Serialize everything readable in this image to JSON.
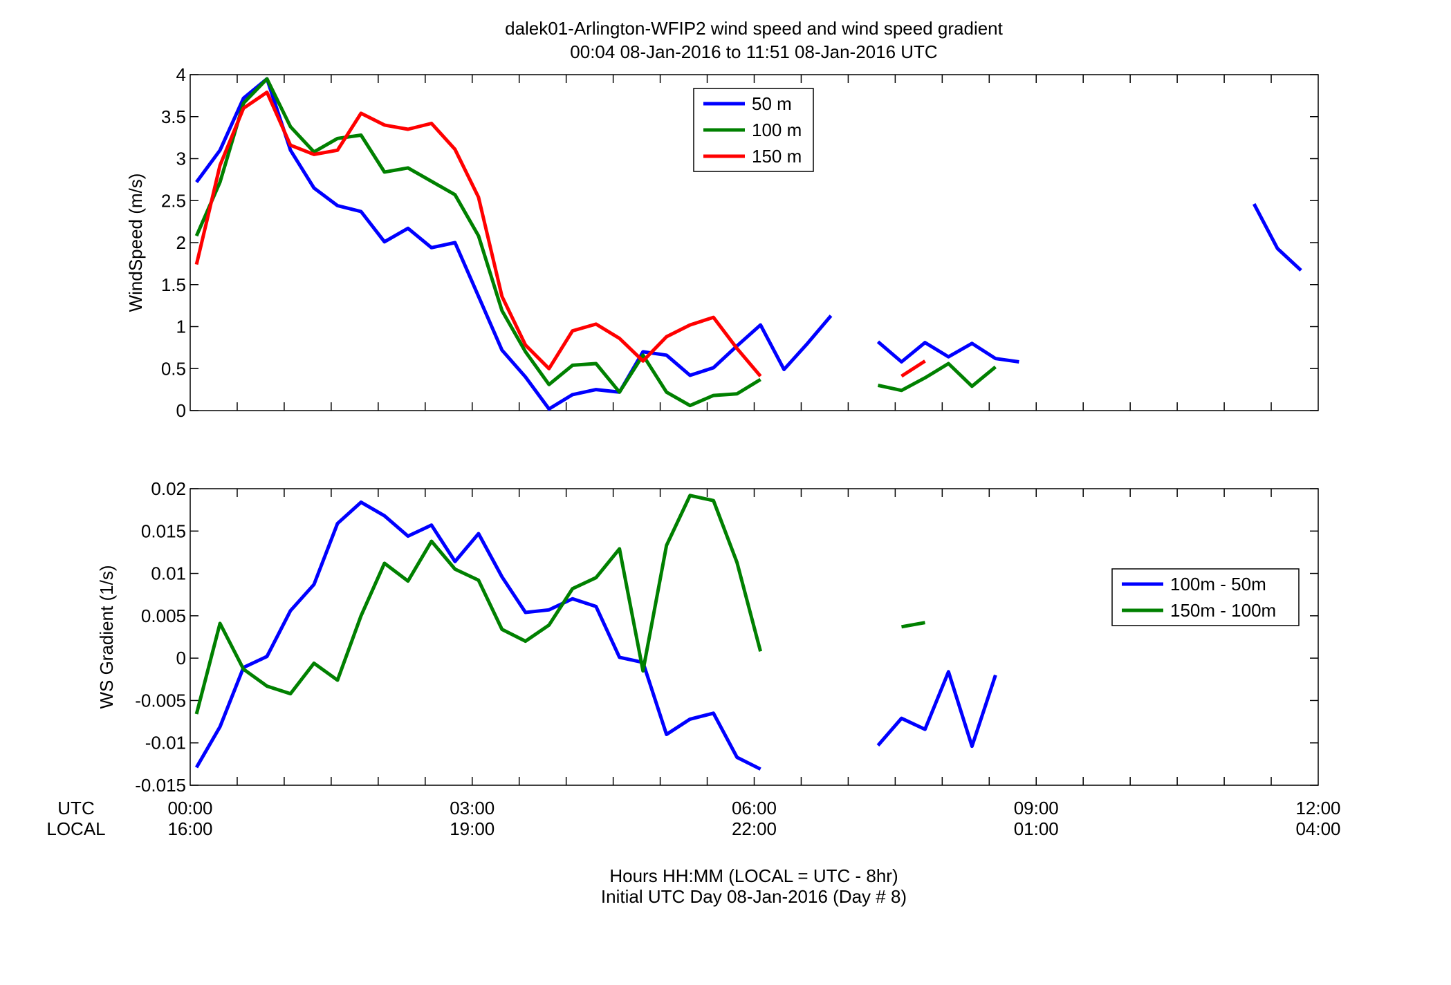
{
  "figure": {
    "title_line1": "dalek01-Arlington-WFIP2  wind speed and wind speed gradient",
    "title_line2": "00:04 08-Jan-2016 to 11:51 08-Jan-2016  UTC",
    "xlabel_line1": "Hours HH:MM  (LOCAL = UTC - 8hr)",
    "xlabel_line2": "Initial UTC Day 08-Jan-2016 (Day # 8)",
    "row_label_utc": "UTC",
    "row_label_local": "LOCAL",
    "x_ticks_utc": [
      "00:00",
      "03:00",
      "06:00",
      "09:00",
      "12:00"
    ],
    "x_ticks_local": [
      "16:00",
      "19:00",
      "22:00",
      "01:00",
      "04:00"
    ]
  },
  "chart_data": [
    {
      "type": "line",
      "ylabel": "WindSpeed (m/s)",
      "xlabel": "Hours HH:MM  (LOCAL = UTC - 8hr)",
      "xlim": [
        0,
        12
      ],
      "ylim": [
        0,
        4
      ],
      "x_tick_values": [
        0,
        3,
        6,
        9,
        12
      ],
      "y_ticks": [
        0,
        0.5,
        1,
        1.5,
        2,
        2.5,
        3,
        3.5,
        4
      ],
      "y_tick_labels": [
        "0",
        "0.5",
        "1",
        "1.5",
        "2",
        "2.5",
        "3",
        "3.5",
        "4"
      ],
      "grid": false,
      "legend_position": "top-center",
      "series": [
        {
          "name": "50 m",
          "color": "#0000ff",
          "x": [
            0.067,
            0.317,
            0.567,
            0.817,
            1.067,
            1.317,
            1.567,
            1.817,
            2.067,
            2.317,
            2.567,
            2.817,
            3.067,
            3.317,
            3.567,
            3.817,
            4.067,
            4.317,
            4.567,
            4.817,
            5.067,
            5.317,
            5.567,
            5.817,
            6.067,
            6.317,
            6.567,
            6.817,
            7.067,
            7.317,
            7.567,
            7.817,
            8.067,
            8.317,
            8.567,
            8.817,
            9.067,
            9.317,
            9.567,
            9.817,
            10.067,
            10.317,
            10.567,
            10.817,
            11.067,
            11.317,
            11.567,
            11.817
          ],
          "y": [
            2.72,
            3.1,
            3.72,
            3.95,
            3.1,
            2.65,
            2.44,
            2.37,
            2.01,
            2.17,
            1.94,
            2.0,
            1.36,
            0.72,
            0.4,
            0.02,
            0.19,
            0.25,
            0.22,
            0.7,
            0.66,
            0.42,
            0.51,
            0.77,
            1.02,
            0.49,
            0.8,
            1.13,
            null,
            0.82,
            0.58,
            0.81,
            0.64,
            0.8,
            0.62,
            0.58,
            null,
            null,
            null,
            null,
            null,
            null,
            null,
            null,
            null,
            2.46,
            1.93,
            1.67
          ]
        },
        {
          "name": "100 m",
          "color": "#008000",
          "x": [
            0.067,
            0.317,
            0.567,
            0.817,
            1.067,
            1.317,
            1.567,
            1.817,
            2.067,
            2.317,
            2.567,
            2.817,
            3.067,
            3.317,
            3.567,
            3.817,
            4.067,
            4.317,
            4.567,
            4.817,
            5.067,
            5.317,
            5.567,
            5.817,
            6.067,
            6.317,
            6.567,
            6.817,
            7.067,
            7.317,
            7.567,
            7.817,
            8.067,
            8.317,
            8.567
          ],
          "y": [
            2.08,
            2.72,
            3.66,
            3.95,
            3.38,
            3.08,
            3.24,
            3.28,
            2.84,
            2.89,
            2.73,
            2.57,
            2.08,
            1.19,
            0.7,
            0.31,
            0.54,
            0.56,
            0.22,
            0.66,
            0.22,
            0.06,
            0.18,
            0.2,
            0.37,
            null,
            null,
            null,
            null,
            0.3,
            0.24,
            0.39,
            0.56,
            0.29,
            0.52
          ]
        },
        {
          "name": "150 m",
          "color": "#ff0000",
          "x": [
            0.067,
            0.317,
            0.567,
            0.817,
            1.067,
            1.317,
            1.567,
            1.817,
            2.067,
            2.317,
            2.567,
            2.817,
            3.067,
            3.317,
            3.567,
            3.817,
            4.067,
            4.317,
            4.567,
            4.817,
            5.067,
            5.317,
            5.567,
            5.817,
            6.067,
            6.317,
            6.567,
            6.817,
            7.067,
            7.317,
            7.567,
            7.817
          ],
          "y": [
            1.74,
            2.92,
            3.6,
            3.79,
            3.16,
            3.05,
            3.1,
            3.54,
            3.4,
            3.35,
            3.42,
            3.11,
            2.54,
            1.36,
            0.78,
            0.5,
            0.95,
            1.03,
            0.86,
            0.59,
            0.88,
            1.02,
            1.11,
            0.74,
            0.41,
            null,
            null,
            null,
            null,
            null,
            0.41,
            0.59
          ]
        }
      ]
    },
    {
      "type": "line",
      "ylabel": "WS Gradient (1/s)",
      "xlabel": "Hours HH:MM  (LOCAL = UTC - 8hr)",
      "xlim": [
        0,
        12
      ],
      "ylim": [
        -0.015,
        0.02
      ],
      "x_tick_values": [
        0,
        3,
        6,
        9,
        12
      ],
      "y_ticks": [
        -0.015,
        -0.01,
        -0.005,
        0,
        0.005,
        0.01,
        0.015,
        0.02
      ],
      "y_tick_labels": [
        "-0.015",
        "-0.01",
        "-0.005",
        "0",
        "0.005",
        "0.01",
        "0.015",
        "0.02"
      ],
      "grid": false,
      "legend_position": "right",
      "series": [
        {
          "name": "100m - 50m",
          "color": "#0000ff",
          "x": [
            0.067,
            0.317,
            0.567,
            0.817,
            1.067,
            1.317,
            1.567,
            1.817,
            2.067,
            2.317,
            2.567,
            2.817,
            3.067,
            3.317,
            3.567,
            3.817,
            4.067,
            4.317,
            4.567,
            4.817,
            5.067,
            5.317,
            5.567,
            5.817,
            6.067,
            6.317,
            6.567,
            6.817,
            7.067,
            7.317,
            7.567,
            7.817,
            8.067,
            8.317,
            8.567
          ],
          "y": [
            -0.0129,
            -0.0081,
            -0.0011,
            0.0002,
            0.0056,
            0.0087,
            0.0159,
            0.0184,
            0.0168,
            0.0144,
            0.0157,
            0.0114,
            0.0147,
            0.0096,
            0.0054,
            0.0057,
            0.007,
            0.0061,
            0.0001,
            -0.0005,
            -0.009,
            -0.0072,
            -0.0065,
            -0.0117,
            -0.0131,
            null,
            null,
            null,
            null,
            -0.0103,
            -0.0071,
            -0.0084,
            -0.0016,
            -0.0104,
            -0.002
          ]
        },
        {
          "name": "150m - 100m",
          "color": "#008000",
          "x": [
            0.067,
            0.317,
            0.567,
            0.817,
            1.067,
            1.317,
            1.567,
            1.817,
            2.067,
            2.317,
            2.567,
            2.817,
            3.067,
            3.317,
            3.567,
            3.817,
            4.067,
            4.317,
            4.567,
            4.817,
            5.067,
            5.317,
            5.567,
            5.817,
            6.067,
            6.317,
            6.567,
            6.817,
            7.067,
            7.317,
            7.567,
            7.817
          ],
          "y": [
            -0.0066,
            0.0041,
            -0.0013,
            -0.0033,
            -0.0042,
            -0.0006,
            -0.0026,
            0.005,
            0.0112,
            0.0091,
            0.0138,
            0.0105,
            0.0092,
            0.0034,
            0.002,
            0.0039,
            0.0082,
            0.0095,
            0.0129,
            -0.0015,
            0.0133,
            0.0192,
            0.0186,
            0.0113,
            0.0008,
            null,
            null,
            null,
            null,
            null,
            0.0037,
            0.0042
          ]
        }
      ]
    }
  ]
}
